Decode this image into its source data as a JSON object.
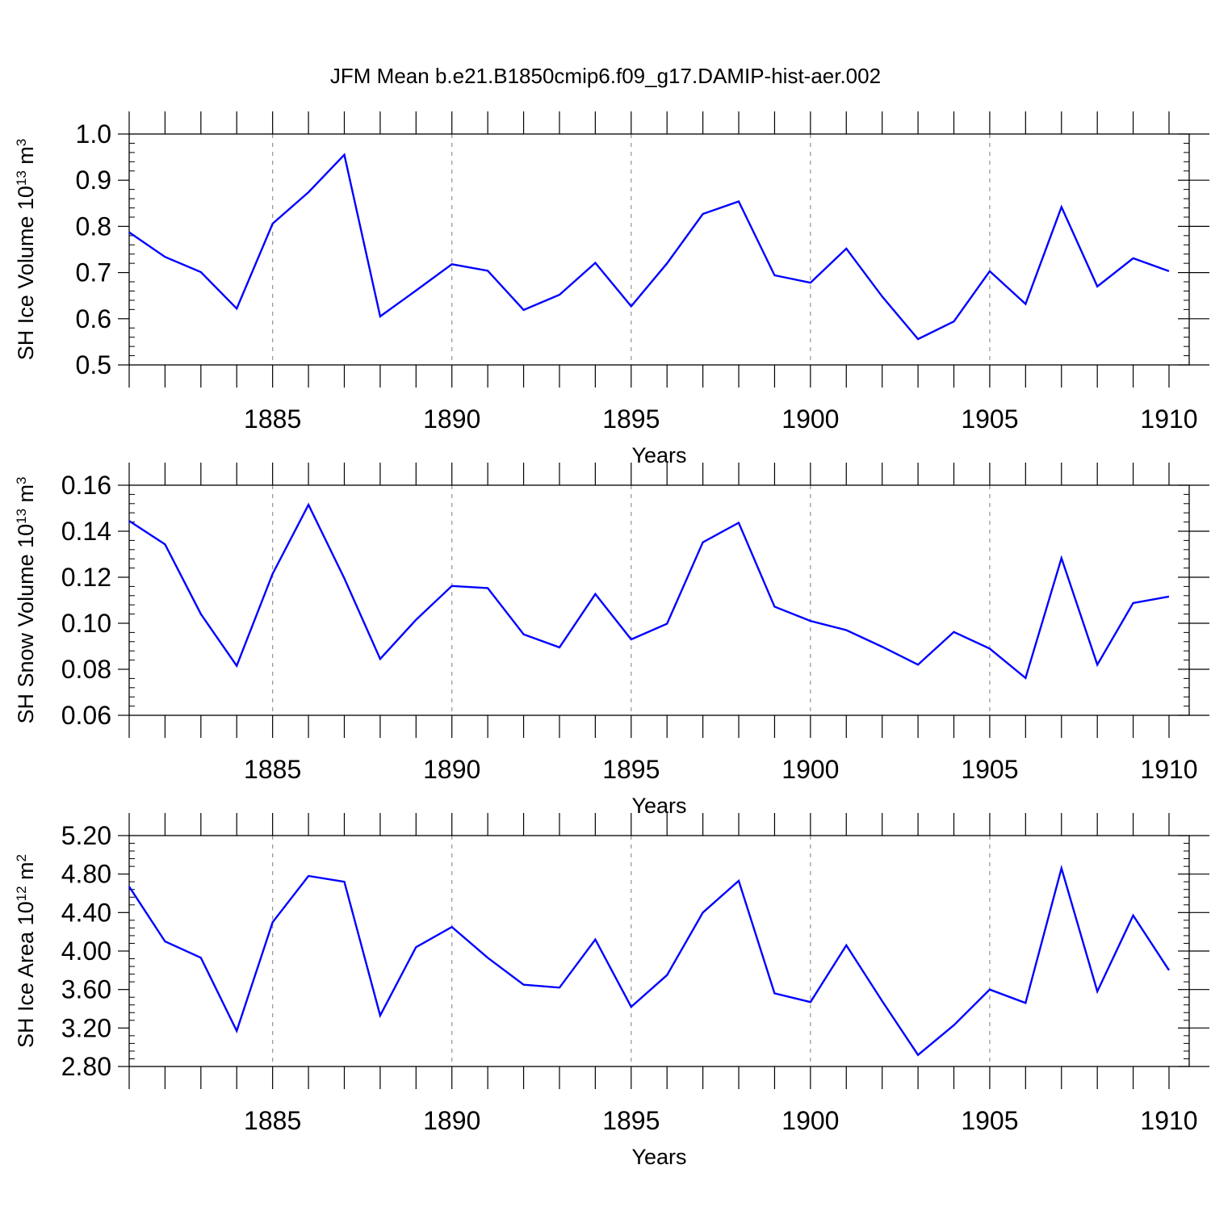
{
  "figure": {
    "title": "JFM Mean b.e21.B1850cmip6.f09_g17.DAMIP-hist-aer.002"
  },
  "colors": {
    "line": "#0000ff",
    "axes": "#000000",
    "grid": "#9a9a9a"
  },
  "chart_data": [
    {
      "type": "line",
      "title": "",
      "ylabel": {
        "text": "SH Ice Volume 10",
        "exponent": "13",
        "unit": " m",
        "unit_exponent": "3"
      },
      "xlabel": "Years",
      "xlim": [
        1881,
        1910
      ],
      "ylim": [
        0.5,
        1.0
      ],
      "yticks": [
        0.5,
        0.6,
        0.7,
        0.8,
        0.9,
        1.0
      ],
      "ytick_labels": [
        "0.5",
        "0.6",
        "0.7",
        "0.8",
        "0.9",
        "1.0"
      ],
      "yminor_step": 0.02,
      "xticks": [
        1885,
        1890,
        1895,
        1900,
        1905,
        1910
      ],
      "xtick_labels": [
        "1885",
        "1890",
        "1895",
        "1900",
        "1905",
        "1910"
      ],
      "grid": "vertical dashed at major x ticks",
      "x": [
        1881,
        1882,
        1883,
        1884,
        1885,
        1886,
        1887,
        1888,
        1889,
        1890,
        1891,
        1892,
        1893,
        1894,
        1895,
        1896,
        1897,
        1898,
        1899,
        1900,
        1901,
        1902,
        1903,
        1904,
        1905,
        1906,
        1907,
        1908,
        1909,
        1910
      ],
      "series": [
        {
          "values": [
            0.787,
            0.734,
            0.701,
            0.622,
            0.806,
            0.874,
            0.955,
            0.605,
            0.661,
            0.718,
            0.704,
            0.619,
            0.652,
            0.721,
            0.627,
            0.72,
            0.827,
            0.854,
            0.694,
            0.678,
            0.752,
            0.648,
            0.556,
            0.594,
            0.703,
            0.632,
            0.842,
            0.67,
            0.731,
            0.703
          ]
        }
      ]
    },
    {
      "type": "line",
      "title": "",
      "ylabel": {
        "text": "SH Snow Volume 10",
        "exponent": "13",
        "unit": " m",
        "unit_exponent": "3"
      },
      "xlabel": "Years",
      "xlim": [
        1881,
        1910
      ],
      "ylim": [
        0.06,
        0.16
      ],
      "yticks": [
        0.06,
        0.08,
        0.1,
        0.12,
        0.14,
        0.16
      ],
      "ytick_labels": [
        "0.06",
        "0.08",
        "0.10",
        "0.12",
        "0.14",
        "0.16"
      ],
      "yminor_step": 0.004,
      "xticks": [
        1885,
        1890,
        1895,
        1900,
        1905,
        1910
      ],
      "xtick_labels": [
        "1885",
        "1890",
        "1895",
        "1900",
        "1905",
        "1910"
      ],
      "grid": "vertical dashed at major x ticks",
      "x": [
        1881,
        1882,
        1883,
        1884,
        1885,
        1886,
        1887,
        1888,
        1889,
        1890,
        1891,
        1892,
        1893,
        1894,
        1895,
        1896,
        1897,
        1898,
        1899,
        1900,
        1901,
        1902,
        1903,
        1904,
        1905,
        1906,
        1907,
        1908,
        1909,
        1910
      ],
      "series": [
        {
          "values": [
            0.1445,
            0.1343,
            0.104,
            0.0815,
            0.1215,
            0.1515,
            0.1195,
            0.0845,
            0.1015,
            0.1162,
            0.1153,
            0.0952,
            0.0895,
            0.1127,
            0.093,
            0.0998,
            0.1352,
            0.1437,
            0.1072,
            0.101,
            0.097,
            0.0898,
            0.082,
            0.0962,
            0.089,
            0.0762,
            0.1283,
            0.082,
            0.1088,
            0.1116
          ]
        }
      ]
    },
    {
      "type": "line",
      "title": "",
      "ylabel": {
        "text": "SH Ice Area 10",
        "exponent": "12",
        "unit": " m",
        "unit_exponent": "2"
      },
      "xlabel": "Years",
      "xlim": [
        1881,
        1910
      ],
      "ylim": [
        2.8,
        5.2
      ],
      "yticks": [
        2.8,
        3.2,
        3.6,
        4.0,
        4.4,
        4.8,
        5.2
      ],
      "ytick_labels": [
        "2.80",
        "3.20",
        "3.60",
        "4.00",
        "4.40",
        "4.80",
        "5.20"
      ],
      "yminor_step": 0.08,
      "xticks": [
        1885,
        1890,
        1895,
        1900,
        1905,
        1910
      ],
      "xtick_labels": [
        "1885",
        "1890",
        "1895",
        "1900",
        "1905",
        "1910"
      ],
      "grid": "vertical dashed at major x ticks",
      "x": [
        1881,
        1882,
        1883,
        1884,
        1885,
        1886,
        1887,
        1888,
        1889,
        1890,
        1891,
        1892,
        1893,
        1894,
        1895,
        1896,
        1897,
        1898,
        1899,
        1900,
        1901,
        1902,
        1903,
        1904,
        1905,
        1906,
        1907,
        1908,
        1909,
        1910
      ],
      "series": [
        {
          "values": [
            4.67,
            4.1,
            3.93,
            3.17,
            4.3,
            4.78,
            4.72,
            3.33,
            4.04,
            4.25,
            3.93,
            3.65,
            3.62,
            4.12,
            3.42,
            3.75,
            4.4,
            4.73,
            3.56,
            3.47,
            4.06,
            3.48,
            2.92,
            3.23,
            3.6,
            3.46,
            4.86,
            3.58,
            4.37,
            3.8
          ]
        }
      ]
    }
  ]
}
